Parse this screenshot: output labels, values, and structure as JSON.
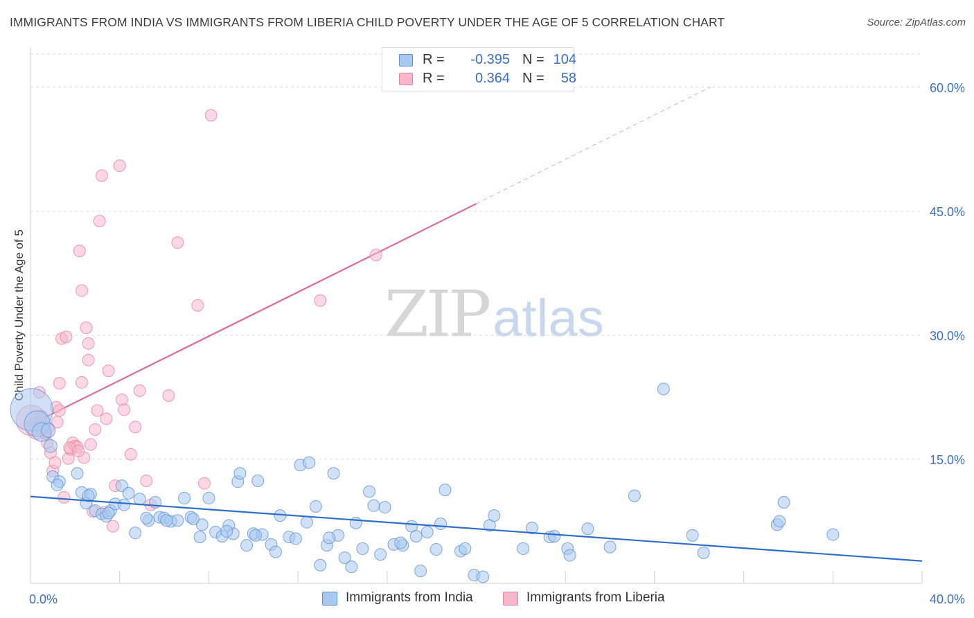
{
  "title": "IMMIGRANTS FROM INDIA VS IMMIGRANTS FROM LIBERIA CHILD POVERTY UNDER THE AGE OF 5 CORRELATION CHART",
  "source": "Source: ZipAtlas.com",
  "watermark": {
    "zip": "ZIP",
    "atlas": "atlas"
  },
  "colors": {
    "india_fill": "#a9c8f0",
    "india_stroke": "#5b93d6",
    "india_line": "#2e6fcc",
    "liberia_fill": "#f7b8cc",
    "liberia_stroke": "#e8839f",
    "liberia_line": "#e06a93",
    "tick_label": "#3a6fc4",
    "grid": "#dcdcdc"
  },
  "legend": {
    "rows": [
      {
        "r_label": "R =",
        "r_value": "-0.395",
        "n_label": "N =",
        "n_value": "104",
        "color": "#a9c8f0",
        "border": "#5b93d6"
      },
      {
        "r_label": "R =",
        "r_value": "0.364",
        "n_label": "N =",
        "n_value": "58",
        "color": "#f7b8cc",
        "border": "#e8839f"
      }
    ]
  },
  "bottom_legend": [
    {
      "label": "Immigrants from India",
      "color": "#a9c8f0",
      "border": "#5b93d6"
    },
    {
      "label": "Immigrants from Liberia",
      "color": "#f7b8cc",
      "border": "#e8839f"
    }
  ],
  "chart_data": {
    "type": "scatter",
    "title": "IMMIGRANTS FROM INDIA VS IMMIGRANTS FROM LIBERIA CHILD POVERTY UNDER THE AGE OF 5 CORRELATION CHART",
    "xlabel": "",
    "ylabel": "Child Poverty Under the Age of 5",
    "xlim": [
      0,
      40
    ],
    "ylim": [
      0,
      64
    ],
    "x_tick_labels": [
      {
        "value": 0,
        "label": "0.0%"
      },
      {
        "value": 40,
        "label": "40.0%"
      }
    ],
    "y_tick_labels": [
      {
        "value": 15,
        "label": "15.0%"
      },
      {
        "value": 30,
        "label": "30.0%"
      },
      {
        "value": 45,
        "label": "45.0%"
      },
      {
        "value": 60,
        "label": "60.0%"
      }
    ],
    "y_gridlines": [
      15,
      30,
      45,
      60
    ],
    "x_minor_ticks": [
      4,
      8,
      12,
      16,
      20,
      24,
      28,
      32,
      36
    ],
    "series": [
      {
        "name": "Immigrants from India",
        "r": -0.395,
        "n": 104,
        "trend": {
          "x0": 0,
          "y0": 10.5,
          "x1": 40,
          "y1": 2.7
        },
        "points": [
          [
            0.05,
            21.0,
            3.6
          ],
          [
            0.3,
            19.3,
            2.2
          ],
          [
            0.5,
            18.3,
            1.6
          ],
          [
            0.8,
            18.5,
            1.2
          ],
          [
            0.9,
            16.6,
            1.1
          ],
          [
            1.0,
            12.9,
            1
          ],
          [
            1.3,
            12.3,
            1
          ],
          [
            1.2,
            11.9,
            1
          ],
          [
            2.1,
            13.3,
            1
          ],
          [
            2.3,
            11.0,
            1
          ],
          [
            2.7,
            10.8,
            1
          ],
          [
            2.5,
            9.7,
            1
          ],
          [
            2.9,
            8.8,
            1
          ],
          [
            3.2,
            8.4,
            1
          ],
          [
            3.4,
            8.1,
            1
          ],
          [
            3.6,
            8.8,
            1
          ],
          [
            3.8,
            9.6,
            1
          ],
          [
            4.1,
            11.8,
            1
          ],
          [
            4.2,
            9.5,
            1
          ],
          [
            4.4,
            10.9,
            1
          ],
          [
            4.7,
            6.1,
            1
          ],
          [
            4.9,
            10.2,
            1
          ],
          [
            5.3,
            7.6,
            1
          ],
          [
            5.6,
            9.8,
            1
          ],
          [
            5.8,
            8.0,
            1
          ],
          [
            6.0,
            7.9,
            1
          ],
          [
            6.3,
            7.5,
            1
          ],
          [
            6.6,
            7.6,
            1
          ],
          [
            6.9,
            10.3,
            1
          ],
          [
            7.2,
            8.0,
            1
          ],
          [
            7.6,
            5.6,
            1
          ],
          [
            7.7,
            7.1,
            1
          ],
          [
            8.0,
            10.3,
            1
          ],
          [
            8.3,
            6.2,
            1
          ],
          [
            8.6,
            5.7,
            1
          ],
          [
            8.9,
            7.0,
            1
          ],
          [
            9.1,
            6.0,
            1
          ],
          [
            9.3,
            12.3,
            1
          ],
          [
            9.4,
            13.3,
            1
          ],
          [
            9.7,
            4.6,
            1
          ],
          [
            10.0,
            6.0,
            1
          ],
          [
            10.2,
            12.4,
            1
          ],
          [
            10.4,
            5.9,
            1
          ],
          [
            10.8,
            4.7,
            1
          ],
          [
            11.0,
            3.8,
            1
          ],
          [
            11.2,
            8.2,
            1
          ],
          [
            11.6,
            5.6,
            1
          ],
          [
            11.9,
            5.4,
            1
          ],
          [
            12.1,
            14.3,
            1
          ],
          [
            12.5,
            14.6,
            1
          ],
          [
            12.4,
            7.4,
            1
          ],
          [
            12.8,
            9.3,
            1
          ],
          [
            13.0,
            2.2,
            1
          ],
          [
            13.3,
            4.6,
            1
          ],
          [
            13.6,
            13.3,
            1
          ],
          [
            13.8,
            5.8,
            1
          ],
          [
            14.1,
            3.1,
            1
          ],
          [
            14.4,
            2.0,
            1
          ],
          [
            14.6,
            7.3,
            1
          ],
          [
            14.9,
            4.2,
            1
          ],
          [
            15.2,
            11.1,
            1
          ],
          [
            15.4,
            9.4,
            1
          ],
          [
            15.7,
            3.5,
            1
          ],
          [
            15.9,
            9.2,
            1
          ],
          [
            16.3,
            4.7,
            1
          ],
          [
            16.7,
            4.6,
            1
          ],
          [
            17.1,
            6.9,
            1
          ],
          [
            17.3,
            5.7,
            1
          ],
          [
            17.5,
            1.5,
            1
          ],
          [
            17.8,
            6.2,
            1
          ],
          [
            18.2,
            4.1,
            1
          ],
          [
            18.4,
            7.2,
            1
          ],
          [
            18.6,
            11.3,
            1
          ],
          [
            19.3,
            3.9,
            1
          ],
          [
            19.5,
            4.2,
            1
          ],
          [
            19.9,
            1.0,
            1
          ],
          [
            20.3,
            0.8,
            1
          ],
          [
            20.6,
            7.0,
            1
          ],
          [
            20.8,
            8.2,
            1
          ],
          [
            22.1,
            4.2,
            1
          ],
          [
            22.5,
            6.7,
            1
          ],
          [
            23.3,
            5.6,
            1
          ],
          [
            23.5,
            5.7,
            1
          ],
          [
            24.1,
            4.2,
            1
          ],
          [
            24.2,
            3.4,
            1
          ],
          [
            25.0,
            6.6,
            1
          ],
          [
            26.0,
            4.4,
            1
          ],
          [
            27.1,
            10.6,
            1
          ],
          [
            28.4,
            23.5,
            1
          ],
          [
            29.7,
            5.8,
            1
          ],
          [
            30.2,
            3.7,
            1
          ],
          [
            33.5,
            7.1,
            1
          ],
          [
            33.6,
            7.5,
            1
          ],
          [
            33.8,
            9.8,
            1
          ],
          [
            36.0,
            5.9,
            1
          ],
          [
            7.3,
            7.8,
            1
          ],
          [
            5.2,
            7.9,
            1
          ],
          [
            3.5,
            8.5,
            1
          ],
          [
            2.6,
            10.6,
            1
          ],
          [
            6.1,
            7.6,
            1
          ],
          [
            8.8,
            6.3,
            1
          ],
          [
            10.1,
            5.8,
            1
          ],
          [
            13.4,
            5.5,
            1
          ],
          [
            16.6,
            4.9,
            1
          ]
        ]
      },
      {
        "name": "Immigrants from Liberia",
        "r": 0.364,
        "n": 58,
        "trend": {
          "x0": 0,
          "y0": 19.2,
          "x1": 20,
          "y1": 45.9
        },
        "trend_extension": {
          "x0": 20,
          "y0": 45.9,
          "x1": 30.5,
          "y1": 60.0
        },
        "points": [
          [
            0.05,
            19.7,
            2.6
          ],
          [
            0.3,
            18.7,
            1.8
          ],
          [
            0.6,
            18.4,
            1.2
          ],
          [
            0.8,
            18.8,
            1
          ],
          [
            0.4,
            23.1,
            1
          ],
          [
            0.5,
            20.2,
            1
          ],
          [
            0.75,
            17.0,
            1
          ],
          [
            0.9,
            15.8,
            1
          ],
          [
            1.0,
            13.6,
            1
          ],
          [
            1.1,
            14.6,
            1
          ],
          [
            1.15,
            21.3,
            1
          ],
          [
            1.2,
            19.5,
            1
          ],
          [
            1.3,
            20.9,
            1
          ],
          [
            1.3,
            24.2,
            1
          ],
          [
            1.4,
            29.6,
            1
          ],
          [
            1.5,
            10.4,
            1
          ],
          [
            1.6,
            29.8,
            1
          ],
          [
            1.7,
            15.1,
            1
          ],
          [
            1.8,
            16.2,
            1
          ],
          [
            1.9,
            17.0,
            1
          ],
          [
            2.0,
            16.6,
            1
          ],
          [
            2.1,
            16.5,
            1
          ],
          [
            2.2,
            40.2,
            1
          ],
          [
            2.3,
            24.3,
            1
          ],
          [
            2.3,
            35.4,
            1
          ],
          [
            2.4,
            15.2,
            1
          ],
          [
            2.5,
            30.9,
            1
          ],
          [
            2.6,
            27.0,
            1
          ],
          [
            2.6,
            29.0,
            1
          ],
          [
            2.7,
            16.8,
            1
          ],
          [
            2.8,
            8.7,
            1
          ],
          [
            2.9,
            18.6,
            1
          ],
          [
            3.0,
            20.9,
            1
          ],
          [
            3.1,
            43.8,
            1
          ],
          [
            3.2,
            49.3,
            1
          ],
          [
            3.3,
            8.6,
            1
          ],
          [
            3.4,
            19.9,
            1
          ],
          [
            3.5,
            25.7,
            1
          ],
          [
            3.7,
            6.9,
            1
          ],
          [
            3.8,
            11.8,
            1
          ],
          [
            4.0,
            50.5,
            1
          ],
          [
            4.1,
            22.2,
            1
          ],
          [
            4.2,
            21.0,
            1
          ],
          [
            4.5,
            15.6,
            1
          ],
          [
            4.7,
            18.9,
            1
          ],
          [
            4.9,
            23.3,
            1
          ],
          [
            5.2,
            12.4,
            1
          ],
          [
            5.4,
            9.5,
            1
          ],
          [
            6.2,
            22.7,
            1
          ],
          [
            6.6,
            41.2,
            1
          ],
          [
            7.5,
            33.6,
            1
          ],
          [
            7.8,
            12.1,
            1
          ],
          [
            8.1,
            56.6,
            1
          ],
          [
            13.0,
            34.2,
            1
          ],
          [
            15.5,
            39.7,
            1
          ],
          [
            1.75,
            16.4,
            1
          ],
          [
            2.15,
            16.0,
            1
          ],
          [
            0.7,
            18.1,
            1
          ]
        ]
      }
    ]
  }
}
